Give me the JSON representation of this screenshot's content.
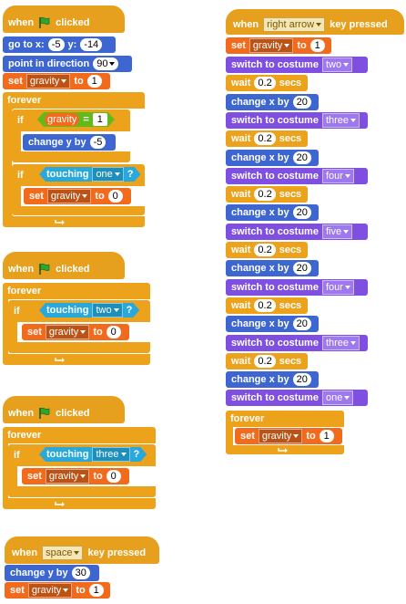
{
  "scripts": {
    "s1": {
      "when": "when",
      "clicked": "clicked",
      "goto": "go to x:",
      "goto_x": "-5",
      "goto_y_label": "y:",
      "goto_y": "-14",
      "point": "point in direction",
      "point_val": "90",
      "set1": "set",
      "set1_var": "gravity",
      "set1_to": "to",
      "set1_val": "1",
      "forever": "forever",
      "if1": "if",
      "if1_var": "gravity",
      "if1_eq": "=",
      "if1_val": "1",
      "change_y": "change y by",
      "change_y_val": "-5",
      "if2": "if",
      "touching": "touching",
      "touching_val": "one",
      "q": "?",
      "set2": "set",
      "set2_var": "gravity",
      "set2_to": "to",
      "set2_val": "0"
    },
    "s2": {
      "when": "when",
      "clicked": "clicked",
      "forever": "forever",
      "if": "if",
      "touching": "touching",
      "touching_val": "two",
      "q": "?",
      "set": "set",
      "set_var": "gravity",
      "set_to": "to",
      "set_val": "0"
    },
    "s3": {
      "when": "when",
      "clicked": "clicked",
      "forever": "forever",
      "if": "if",
      "touching": "touching",
      "touching_val": "three",
      "q": "?",
      "set": "set",
      "set_var": "gravity",
      "set_to": "to",
      "set_val": "0"
    },
    "s4": {
      "when": "when",
      "key": "space",
      "pressed": "key pressed",
      "change_y": "change y by",
      "change_y_val": "30",
      "set": "set",
      "set_var": "gravity",
      "set_to": "to",
      "set_val": "1"
    },
    "s5": {
      "when": "when",
      "key": "right arrow",
      "pressed": "key pressed",
      "set": "set",
      "set_var": "gravity",
      "set_to": "to",
      "set_val": "1",
      "switch_label": "switch to costume",
      "wait_label": "wait",
      "secs": "secs",
      "change_x_label": "change x by",
      "costumes": [
        "two",
        "three",
        "four",
        "five",
        "four",
        "three",
        "one"
      ],
      "waits": [
        "0.2",
        "0.2",
        "0.2",
        "0.2",
        "0.2",
        "0.2"
      ],
      "change_xs": [
        "20",
        "20",
        "20",
        "20",
        "20",
        "20"
      ],
      "forever": "forever",
      "fset": "set",
      "fset_var": "gravity",
      "fset_to": "to",
      "fset_val": "1"
    }
  },
  "colors": {
    "events": "#e6a01e",
    "motion": "#3d66d1",
    "looks": "#7e4fe0",
    "control": "#eda21b",
    "variables": "#f26a1b",
    "sensing": "#29a9db",
    "operators": "#5fba1c",
    "flag": "#2fa52f"
  },
  "icons": [
    "green-flag-icon",
    "loop-arrow-icon",
    "dropdown-caret-icon"
  ]
}
